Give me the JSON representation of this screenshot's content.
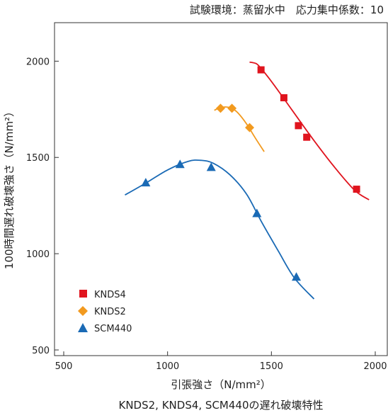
{
  "header": {
    "condition": "試験環境：蒸留水中　応力集中係数：10"
  },
  "caption": "KNDS2, KNDS4, SCM440の遅れ破壊特性",
  "chart_data": {
    "type": "scatter",
    "title": "",
    "xlabel": "引張強さ（N/mm²）",
    "ylabel": "100時間遅れ破壊強さ（N/mm²）",
    "xlim": [
      500,
      2000
    ],
    "ylim": [
      500,
      2200
    ],
    "x_ticks": [
      {
        "value": 500,
        "label": "500"
      },
      {
        "value": 1000,
        "label": "1000"
      },
      {
        "value": 1500,
        "label": "1500"
      },
      {
        "value": 2000,
        "label": "2000"
      }
    ],
    "y_ticks": [
      {
        "value": 500,
        "label": "500"
      },
      {
        "value": 1000,
        "label": "1000"
      },
      {
        "value": 1500,
        "label": "1500"
      },
      {
        "value": 2000,
        "label": "2000"
      }
    ],
    "legend_position": "bottom-left",
    "series": [
      {
        "name": "KNDS4",
        "marker": "square",
        "color": "#e0141e",
        "points": [
          [
            1450,
            1955
          ],
          [
            1560,
            1810
          ],
          [
            1630,
            1665
          ],
          [
            1670,
            1605
          ],
          [
            1910,
            1335
          ]
        ],
        "curve": [
          [
            1395,
            1995
          ],
          [
            1420,
            1990
          ],
          [
            1440,
            1975
          ],
          [
            1500,
            1895
          ],
          [
            1600,
            1745
          ],
          [
            1700,
            1595
          ],
          [
            1800,
            1455
          ],
          [
            1900,
            1330
          ],
          [
            1970,
            1280
          ]
        ]
      },
      {
        "name": "KNDS2",
        "marker": "diamond",
        "color": "#f29a1f",
        "points": [
          [
            1255,
            1755
          ],
          [
            1310,
            1755
          ],
          [
            1395,
            1655
          ]
        ],
        "curve": [
          [
            1225,
            1745
          ],
          [
            1250,
            1757
          ],
          [
            1280,
            1762
          ],
          [
            1310,
            1755
          ],
          [
            1340,
            1730
          ],
          [
            1380,
            1675
          ],
          [
            1420,
            1605
          ],
          [
            1465,
            1530
          ]
        ]
      },
      {
        "name": "SCM440",
        "marker": "triangle",
        "color": "#1a6ab5",
        "points": [
          [
            895,
            1370
          ],
          [
            1060,
            1465
          ],
          [
            1210,
            1450
          ],
          [
            1430,
            1210
          ],
          [
            1620,
            880
          ]
        ],
        "curve": [
          [
            795,
            1305
          ],
          [
            900,
            1370
          ],
          [
            1000,
            1435
          ],
          [
            1100,
            1480
          ],
          [
            1160,
            1485
          ],
          [
            1220,
            1470
          ],
          [
            1300,
            1410
          ],
          [
            1380,
            1310
          ],
          [
            1450,
            1170
          ],
          [
            1530,
            1020
          ],
          [
            1610,
            875
          ],
          [
            1705,
            765
          ]
        ]
      }
    ]
  }
}
